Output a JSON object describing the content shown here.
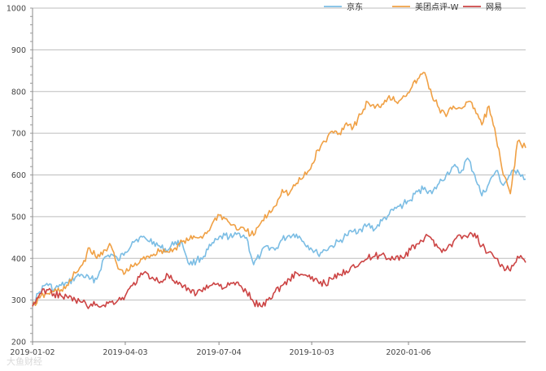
{
  "chart_data": {
    "type": "line",
    "title": "",
    "xlabel": "",
    "ylabel": "",
    "ylim": [
      200,
      1000
    ],
    "yticks": [
      200,
      300,
      400,
      500,
      600,
      700,
      800,
      900,
      1000
    ],
    "xlim": [
      "2019-01-02",
      "2020-04-30"
    ],
    "xticks": [
      "2019-01-02",
      "2019-04-03",
      "2019-07-04",
      "2019-10-03",
      "2020-01-06"
    ],
    "grid": "horizontal",
    "legend_position": "top-right",
    "series": [
      {
        "name": "京东",
        "color": "#7bbde4",
        "points": [
          [
            "2019-01-02",
            290
          ],
          [
            "2019-01-09",
            320
          ],
          [
            "2019-01-16",
            340
          ],
          [
            "2019-01-23",
            325
          ],
          [
            "2019-01-30",
            335
          ],
          [
            "2019-02-06",
            340
          ],
          [
            "2019-02-13",
            355
          ],
          [
            "2019-02-20",
            360
          ],
          [
            "2019-02-27",
            350
          ],
          [
            "2019-03-06",
            350
          ],
          [
            "2019-03-13",
            400
          ],
          [
            "2019-03-20",
            410
          ],
          [
            "2019-03-27",
            395
          ],
          [
            "2019-04-03",
            415
          ],
          [
            "2019-04-10",
            440
          ],
          [
            "2019-04-17",
            450
          ],
          [
            "2019-04-24",
            445
          ],
          [
            "2019-05-01",
            440
          ],
          [
            "2019-05-08",
            425
          ],
          [
            "2019-05-15",
            420
          ],
          [
            "2019-05-22",
            440
          ],
          [
            "2019-05-29",
            435
          ],
          [
            "2019-06-05",
            385
          ],
          [
            "2019-06-12",
            395
          ],
          [
            "2019-06-19",
            405
          ],
          [
            "2019-06-26",
            430
          ],
          [
            "2019-07-03",
            445
          ],
          [
            "2019-07-10",
            455
          ],
          [
            "2019-07-17",
            450
          ],
          [
            "2019-07-24",
            460
          ],
          [
            "2019-07-31",
            450
          ],
          [
            "2019-08-07",
            385
          ],
          [
            "2019-08-14",
            410
          ],
          [
            "2019-08-21",
            430
          ],
          [
            "2019-08-28",
            420
          ],
          [
            "2019-09-04",
            445
          ],
          [
            "2019-09-11",
            455
          ],
          [
            "2019-09-18",
            458
          ],
          [
            "2019-09-25",
            440
          ],
          [
            "2019-10-02",
            425
          ],
          [
            "2019-10-09",
            410
          ],
          [
            "2019-10-16",
            420
          ],
          [
            "2019-10-23",
            430
          ],
          [
            "2019-10-30",
            440
          ],
          [
            "2019-11-06",
            455
          ],
          [
            "2019-11-13",
            465
          ],
          [
            "2019-11-20",
            470
          ],
          [
            "2019-11-27",
            480
          ],
          [
            "2019-12-04",
            470
          ],
          [
            "2019-12-11",
            490
          ],
          [
            "2019-12-18",
            505
          ],
          [
            "2019-12-25",
            520
          ],
          [
            "2020-01-01",
            530
          ],
          [
            "2020-01-08",
            540
          ],
          [
            "2020-01-15",
            560
          ],
          [
            "2020-01-22",
            570
          ],
          [
            "2020-01-29",
            555
          ],
          [
            "2020-02-05",
            580
          ],
          [
            "2020-02-12",
            600
          ],
          [
            "2020-02-19",
            620
          ],
          [
            "2020-02-26",
            605
          ],
          [
            "2020-03-04",
            640
          ],
          [
            "2020-03-11",
            600
          ],
          [
            "2020-03-18",
            550
          ],
          [
            "2020-03-25",
            580
          ],
          [
            "2020-04-01",
            610
          ],
          [
            "2020-04-08",
            575
          ],
          [
            "2020-04-15",
            600
          ],
          [
            "2020-04-22",
            612
          ],
          [
            "2020-04-30",
            590
          ]
        ]
      },
      {
        "name": "美团点评-W",
        "color": "#f0a044",
        "points": [
          [
            "2019-01-02",
            285
          ],
          [
            "2019-01-09",
            305
          ],
          [
            "2019-01-16",
            315
          ],
          [
            "2019-01-23",
            320
          ],
          [
            "2019-01-30",
            325
          ],
          [
            "2019-02-06",
            335
          ],
          [
            "2019-02-13",
            365
          ],
          [
            "2019-02-20",
            385
          ],
          [
            "2019-02-27",
            425
          ],
          [
            "2019-03-06",
            400
          ],
          [
            "2019-03-13",
            420
          ],
          [
            "2019-03-20",
            430
          ],
          [
            "2019-03-27",
            375
          ],
          [
            "2019-04-03",
            365
          ],
          [
            "2019-04-10",
            380
          ],
          [
            "2019-04-17",
            390
          ],
          [
            "2019-04-24",
            405
          ],
          [
            "2019-05-01",
            410
          ],
          [
            "2019-05-08",
            420
          ],
          [
            "2019-05-15",
            415
          ],
          [
            "2019-05-22",
            425
          ],
          [
            "2019-05-29",
            440
          ],
          [
            "2019-06-05",
            445
          ],
          [
            "2019-06-12",
            450
          ],
          [
            "2019-06-19",
            455
          ],
          [
            "2019-06-26",
            475
          ],
          [
            "2019-07-03",
            505
          ],
          [
            "2019-07-10",
            495
          ],
          [
            "2019-07-17",
            480
          ],
          [
            "2019-07-24",
            470
          ],
          [
            "2019-07-31",
            465
          ],
          [
            "2019-08-07",
            455
          ],
          [
            "2019-08-14",
            485
          ],
          [
            "2019-08-21",
            505
          ],
          [
            "2019-08-28",
            525
          ],
          [
            "2019-09-04",
            565
          ],
          [
            "2019-09-11",
            555
          ],
          [
            "2019-09-18",
            580
          ],
          [
            "2019-09-25",
            595
          ],
          [
            "2019-10-02",
            615
          ],
          [
            "2019-10-09",
            660
          ],
          [
            "2019-10-16",
            680
          ],
          [
            "2019-10-23",
            705
          ],
          [
            "2019-10-30",
            700
          ],
          [
            "2019-11-06",
            725
          ],
          [
            "2019-11-13",
            715
          ],
          [
            "2019-11-20",
            745
          ],
          [
            "2019-11-27",
            775
          ],
          [
            "2019-12-04",
            760
          ],
          [
            "2019-12-11",
            770
          ],
          [
            "2019-12-18",
            790
          ],
          [
            "2019-12-25",
            775
          ],
          [
            "2020-01-01",
            790
          ],
          [
            "2020-01-08",
            805
          ],
          [
            "2020-01-15",
            830
          ],
          [
            "2020-01-22",
            845
          ],
          [
            "2020-01-29",
            790
          ],
          [
            "2020-02-05",
            760
          ],
          [
            "2020-02-12",
            740
          ],
          [
            "2020-02-19",
            765
          ],
          [
            "2020-02-26",
            760
          ],
          [
            "2020-03-04",
            775
          ],
          [
            "2020-03-11",
            760
          ],
          [
            "2020-03-18",
            720
          ],
          [
            "2020-03-25",
            765
          ],
          [
            "2020-04-01",
            690
          ],
          [
            "2020-04-08",
            600
          ],
          [
            "2020-04-15",
            555
          ],
          [
            "2020-04-22",
            680
          ],
          [
            "2020-04-30",
            665
          ]
        ]
      },
      {
        "name": "网易",
        "color": "#cc4444",
        "points": [
          [
            "2019-01-02",
            285
          ],
          [
            "2019-01-09",
            315
          ],
          [
            "2019-01-16",
            325
          ],
          [
            "2019-01-23",
            315
          ],
          [
            "2019-01-30",
            310
          ],
          [
            "2019-02-06",
            305
          ],
          [
            "2019-02-13",
            300
          ],
          [
            "2019-02-20",
            295
          ],
          [
            "2019-02-27",
            285
          ],
          [
            "2019-03-06",
            290
          ],
          [
            "2019-03-13",
            288
          ],
          [
            "2019-03-20",
            295
          ],
          [
            "2019-03-27",
            300
          ],
          [
            "2019-04-03",
            310
          ],
          [
            "2019-04-10",
            335
          ],
          [
            "2019-04-17",
            355
          ],
          [
            "2019-04-24",
            365
          ],
          [
            "2019-05-01",
            350
          ],
          [
            "2019-05-08",
            345
          ],
          [
            "2019-05-15",
            360
          ],
          [
            "2019-05-22",
            340
          ],
          [
            "2019-05-29",
            330
          ],
          [
            "2019-06-05",
            325
          ],
          [
            "2019-06-12",
            315
          ],
          [
            "2019-06-19",
            330
          ],
          [
            "2019-06-26",
            335
          ],
          [
            "2019-07-03",
            340
          ],
          [
            "2019-07-10",
            330
          ],
          [
            "2019-07-17",
            340
          ],
          [
            "2019-07-24",
            335
          ],
          [
            "2019-07-31",
            320
          ],
          [
            "2019-08-07",
            295
          ],
          [
            "2019-08-14",
            285
          ],
          [
            "2019-08-21",
            300
          ],
          [
            "2019-08-28",
            320
          ],
          [
            "2019-09-04",
            335
          ],
          [
            "2019-09-11",
            350
          ],
          [
            "2019-09-18",
            365
          ],
          [
            "2019-09-25",
            360
          ],
          [
            "2019-10-02",
            350
          ],
          [
            "2019-10-09",
            345
          ],
          [
            "2019-10-16",
            340
          ],
          [
            "2019-10-23",
            350
          ],
          [
            "2019-10-30",
            360
          ],
          [
            "2019-11-06",
            370
          ],
          [
            "2019-11-13",
            385
          ],
          [
            "2019-11-20",
            390
          ],
          [
            "2019-11-27",
            400
          ],
          [
            "2019-12-04",
            405
          ],
          [
            "2019-12-11",
            410
          ],
          [
            "2019-12-18",
            400
          ],
          [
            "2019-12-25",
            405
          ],
          [
            "2020-01-01",
            400
          ],
          [
            "2020-01-08",
            420
          ],
          [
            "2020-01-15",
            435
          ],
          [
            "2020-01-22",
            450
          ],
          [
            "2020-01-29",
            445
          ],
          [
            "2020-02-05",
            425
          ],
          [
            "2020-02-12",
            420
          ],
          [
            "2020-02-19",
            440
          ],
          [
            "2020-02-26",
            455
          ],
          [
            "2020-03-04",
            450
          ],
          [
            "2020-03-11",
            460
          ],
          [
            "2020-03-18",
            430
          ],
          [
            "2020-03-25",
            415
          ],
          [
            "2020-04-01",
            400
          ],
          [
            "2020-04-08",
            380
          ],
          [
            "2020-04-15",
            370
          ],
          [
            "2020-04-22",
            405
          ],
          [
            "2020-04-30",
            390
          ]
        ]
      }
    ]
  },
  "watermark": "大鱼财经"
}
